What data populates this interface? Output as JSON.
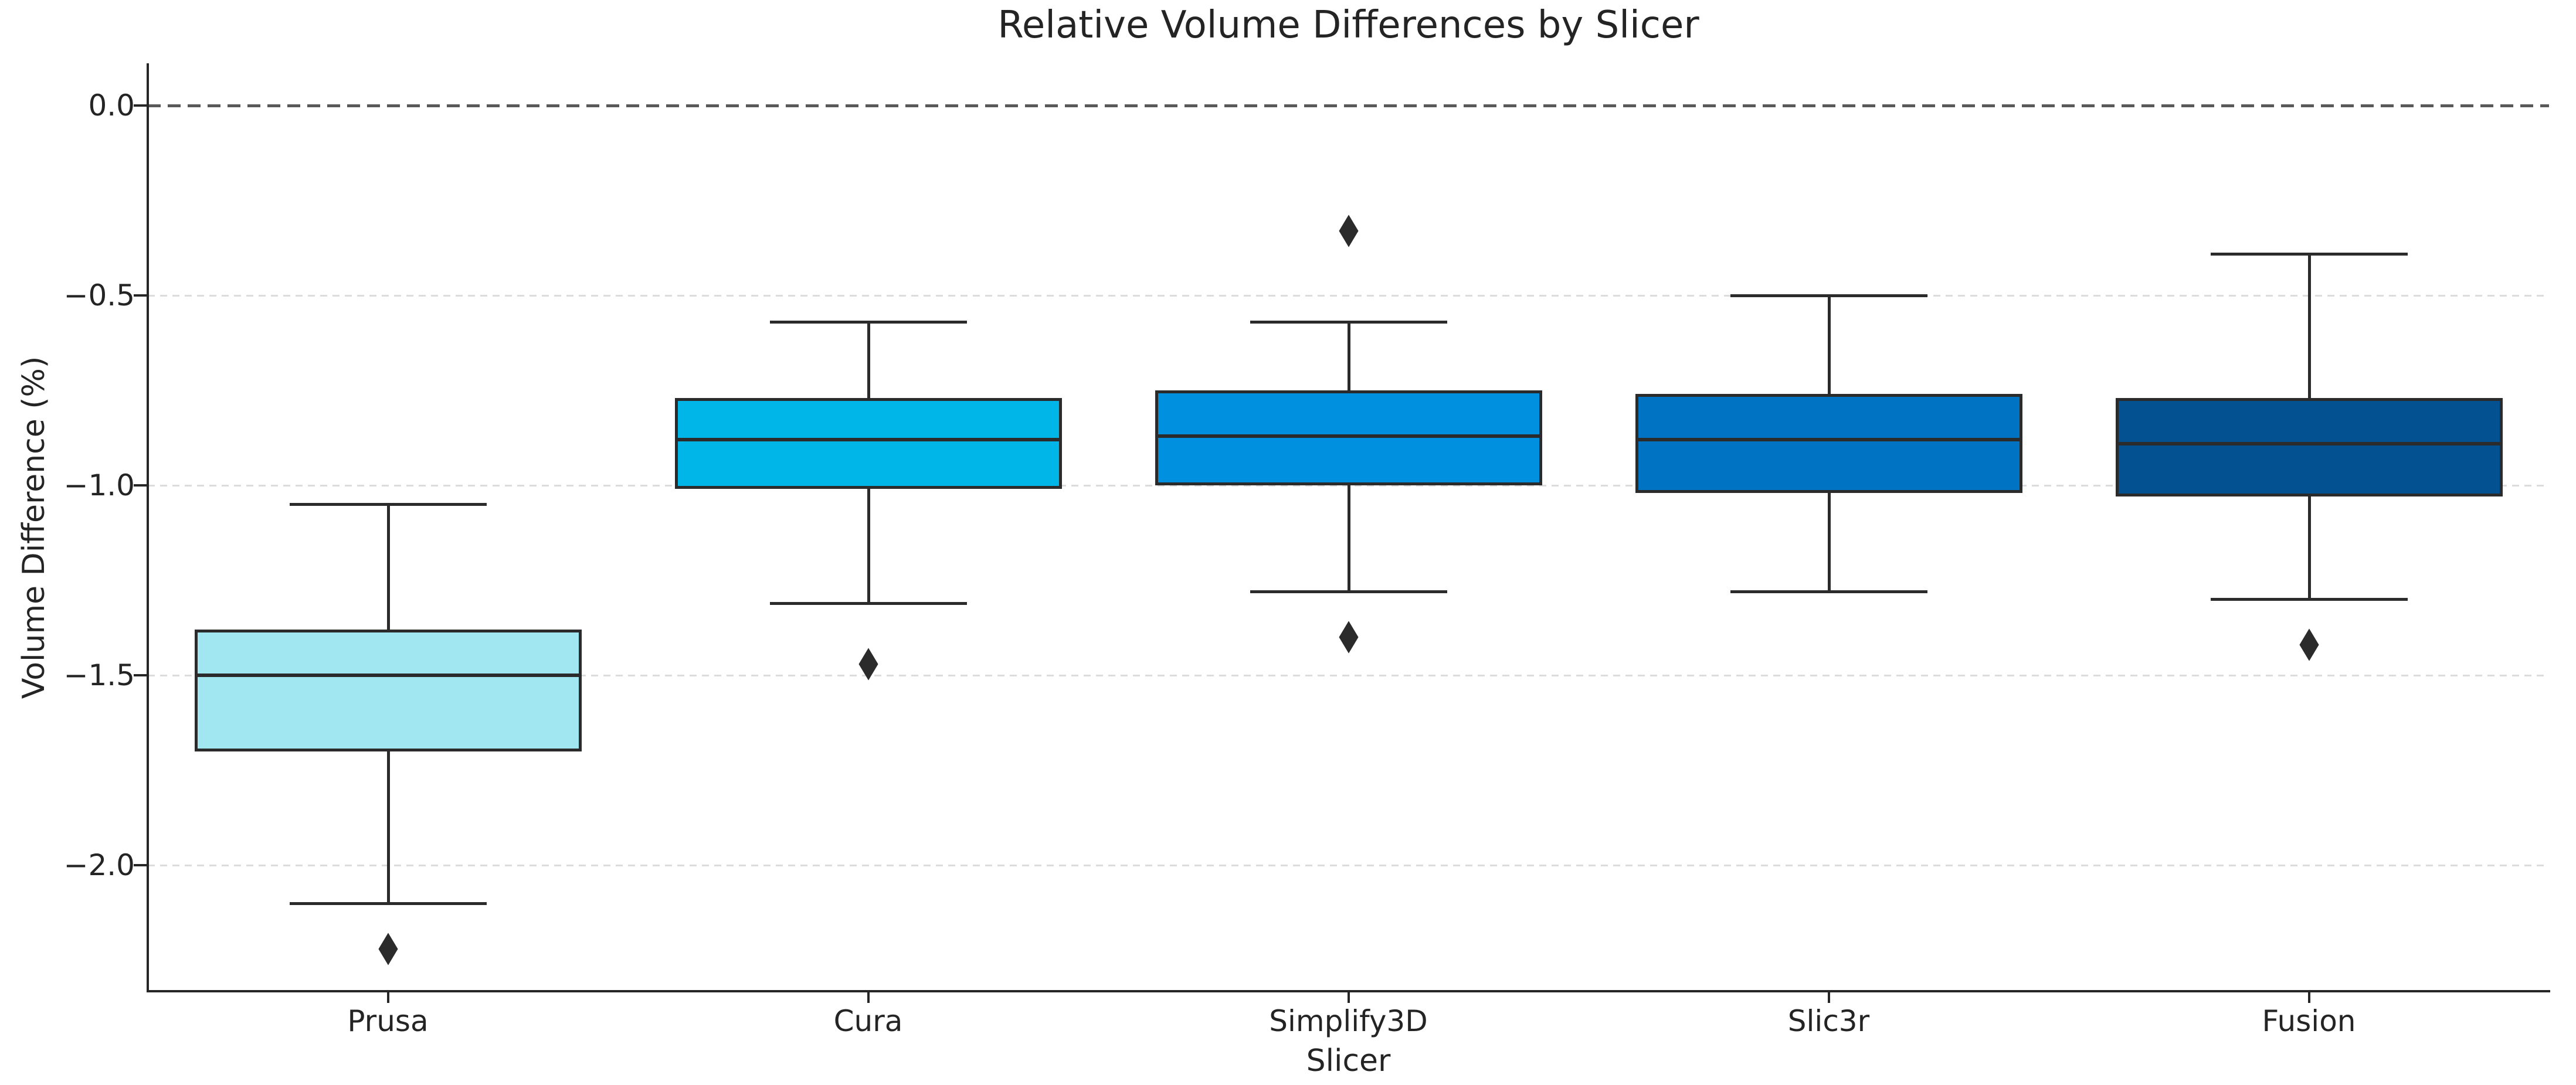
{
  "chart_data": {
    "type": "boxplot",
    "title": "Relative Volume Differences by Slicer",
    "xlabel": "Slicer",
    "ylabel": "Volume Difference (%)",
    "categories": [
      "Prusa",
      "Cura",
      "Simplify3D",
      "Slic3r",
      "Fusion"
    ],
    "y_ticks": [
      {
        "label": "0.0",
        "value": 0.0
      },
      {
        "label": "−0.5",
        "value": -0.5
      },
      {
        "label": "−1.0",
        "value": -1.0
      },
      {
        "label": "−1.5",
        "value": -1.5
      },
      {
        "label": "−2.0",
        "value": -2.0
      }
    ],
    "ylim": [
      -2.33,
      0.11
    ],
    "grid": "horizontal-dashed-light",
    "legend": "none",
    "reference_line": {
      "value": 0.0,
      "style": "dashed",
      "color": "#595959"
    },
    "series": [
      {
        "name": "Prusa",
        "whisker_low": -2.1,
        "q1": -1.7,
        "median": -1.5,
        "q3": -1.38,
        "whisker_high": -1.05,
        "outliers": [
          -2.22
        ],
        "color": "#a0e7f1"
      },
      {
        "name": "Cura",
        "whisker_low": -1.31,
        "q1": -1.01,
        "median": -0.88,
        "q3": -0.77,
        "whisker_high": -0.57,
        "outliers": [
          -1.47
        ],
        "color": "#00b5e8"
      },
      {
        "name": "Simplify3D",
        "whisker_low": -1.28,
        "q1": -1.0,
        "median": -0.87,
        "q3": -0.75,
        "whisker_high": -0.57,
        "outliers": [
          -0.33,
          -1.4
        ],
        "color": "#0090e0"
      },
      {
        "name": "Slic3r",
        "whisker_low": -1.28,
        "q1": -1.02,
        "median": -0.88,
        "q3": -0.76,
        "whisker_high": -0.5,
        "outliers": [],
        "color": "#0173c3"
      },
      {
        "name": "Fusion",
        "whisker_low": -1.3,
        "q1": -1.03,
        "median": -0.89,
        "q3": -0.77,
        "whisker_high": -0.39,
        "outliers": [
          -1.42
        ],
        "color": "#045192"
      }
    ],
    "box_edge_color": "#2b2b2b",
    "outlier_marker": "thin-diamond"
  }
}
